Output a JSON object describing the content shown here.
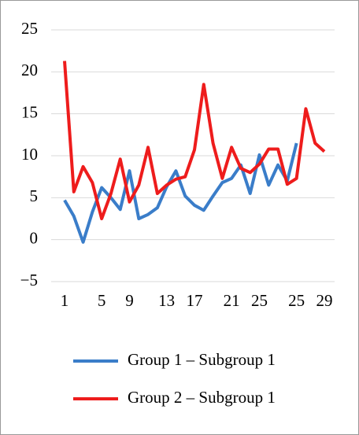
{
  "chart_data": {
    "type": "line",
    "categories": [
      "1",
      null,
      null,
      null,
      "5",
      null,
      null,
      "9",
      null,
      null,
      null,
      "13",
      null,
      null,
      "17",
      null,
      null,
      null,
      "21",
      null,
      null,
      "25",
      null,
      null,
      null,
      "25",
      null,
      null,
      "29"
    ],
    "series": [
      {
        "name": "Group 1 – Subgroup 1",
        "color": "#3a7dc9",
        "values": [
          4.7,
          2.8,
          -0.3,
          3.3,
          6.2,
          5.0,
          3.6,
          8.2,
          2.5,
          3.0,
          3.8,
          6.3,
          8.2,
          5.2,
          4.1,
          3.5,
          5.2,
          6.8,
          7.3,
          8.9,
          5.5,
          10.1,
          6.5,
          8.9,
          7.0,
          11.5,
          null,
          null,
          null
        ]
      },
      {
        "name": "Group 2 – Subgroup 1",
        "color": "#ee1c1c",
        "values": [
          21.3,
          5.7,
          8.7,
          6.8,
          2.5,
          5.5,
          9.6,
          4.5,
          6.5,
          11.0,
          5.5,
          6.5,
          7.2,
          7.5,
          10.7,
          18.5,
          11.5,
          7.3,
          11.0,
          8.5,
          8.0,
          9.0,
          10.8,
          10.8,
          6.6,
          7.3,
          15.6,
          11.5,
          10.5
        ]
      }
    ],
    "ylim": [
      -5,
      25
    ],
    "yticks": [
      {
        "value": -5,
        "label": "−5"
      },
      0,
      5,
      10,
      15,
      20,
      25
    ],
    "grid": true,
    "legend": "bottom"
  }
}
